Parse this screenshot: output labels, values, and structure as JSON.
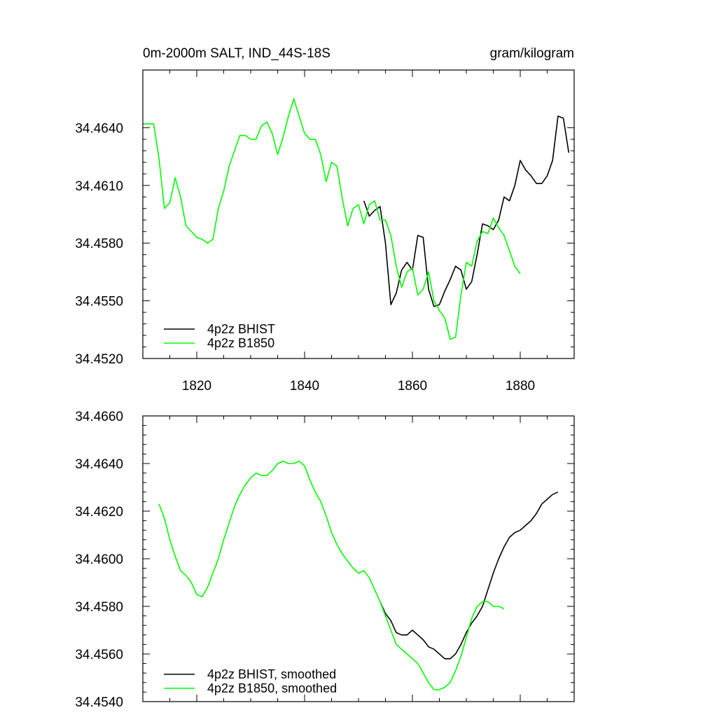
{
  "chart_data": [
    {
      "type": "line",
      "title_left": "0m-2000m SALT, IND_44S-18S",
      "title_right": "gram/kilogram",
      "xlabel": "",
      "ylabel": "",
      "xlim": [
        1810,
        1890
      ],
      "ylim": [
        34.452,
        34.467
      ],
      "x_ticks": [
        1820,
        1840,
        1860,
        1880
      ],
      "x_tick_labels": [
        "1820",
        "1840",
        "1860",
        "1880"
      ],
      "y_ticks": [
        34.452,
        34.455,
        34.458,
        34.461,
        34.464
      ],
      "y_tick_labels": [
        "34.4520",
        "34.4550",
        "34.4580",
        "34.4610",
        "34.4640"
      ],
      "legend": [
        "4p2z BHIST",
        "4p2z B1850"
      ],
      "series": [
        {
          "name": "4p2z BHIST",
          "color": "#000000",
          "x": [
            1851,
            1852,
            1853,
            1854,
            1855,
            1856,
            1857,
            1858,
            1859,
            1860,
            1861,
            1862,
            1863,
            1864,
            1865,
            1866,
            1867,
            1868,
            1869,
            1870,
            1871,
            1872,
            1873,
            1874,
            1875,
            1876,
            1877,
            1878,
            1879,
            1880,
            1881,
            1882,
            1883,
            1884,
            1885,
            1886,
            1887,
            1888,
            1889
          ],
          "y": [
            34.4602,
            34.4594,
            34.4597,
            34.4599,
            34.458,
            34.4548,
            34.4554,
            34.4566,
            34.457,
            34.4566,
            34.4584,
            34.4583,
            34.4556,
            34.4547,
            34.4548,
            34.4555,
            34.4561,
            34.4568,
            34.4566,
            34.4556,
            34.456,
            34.4574,
            34.459,
            34.4589,
            34.4587,
            34.4592,
            34.4604,
            34.4602,
            34.461,
            34.4623,
            34.4618,
            34.4615,
            34.4611,
            34.4611,
            34.4615,
            34.4623,
            34.4646,
            34.4645,
            34.4627
          ]
        },
        {
          "name": "4p2z B1850",
          "color": "#00ff00",
          "x": [
            1810,
            1811,
            1812,
            1813,
            1814,
            1815,
            1816,
            1817,
            1818,
            1819,
            1820,
            1821,
            1822,
            1823,
            1824,
            1825,
            1826,
            1827,
            1828,
            1829,
            1830,
            1831,
            1832,
            1833,
            1834,
            1835,
            1836,
            1837,
            1838,
            1839,
            1840,
            1841,
            1842,
            1843,
            1844,
            1845,
            1846,
            1847,
            1848,
            1849,
            1850,
            1851,
            1852,
            1853,
            1854,
            1855,
            1856,
            1857,
            1858,
            1859,
            1860,
            1861,
            1862,
            1863,
            1864,
            1865,
            1866,
            1867,
            1868,
            1869,
            1870,
            1871,
            1872,
            1873,
            1874,
            1875,
            1876,
            1877,
            1878,
            1879,
            1880
          ],
          "y": [
            34.4642,
            34.4642,
            34.4642,
            34.4624,
            34.4598,
            34.4601,
            34.4614,
            34.4604,
            34.4589,
            34.4586,
            34.4583,
            34.4582,
            34.458,
            34.4582,
            34.4598,
            34.4607,
            34.462,
            34.4628,
            34.4636,
            34.4636,
            34.4634,
            34.4634,
            34.4641,
            34.4643,
            34.4637,
            34.4626,
            34.4635,
            34.4646,
            34.4655,
            34.4646,
            34.4637,
            34.4634,
            34.4634,
            34.4626,
            34.4612,
            34.4622,
            34.462,
            34.4603,
            34.4589,
            34.4598,
            34.46,
            34.459,
            34.46,
            34.4602,
            34.4592,
            34.4592,
            34.4584,
            34.4568,
            34.4557,
            34.4565,
            34.4567,
            34.4553,
            34.4556,
            34.4565,
            34.455,
            34.4545,
            34.4541,
            34.453,
            34.4531,
            34.4553,
            34.457,
            34.4568,
            34.4581,
            34.4586,
            34.4585,
            34.4593,
            34.4588,
            34.4584,
            34.4576,
            34.4568,
            34.4564
          ]
        }
      ]
    },
    {
      "type": "line",
      "title_left": "",
      "title_right": "",
      "xlabel": "",
      "ylabel": "",
      "xlim": [
        1810,
        1890
      ],
      "ylim": [
        34.454,
        34.466
      ],
      "x_ticks": [
        1820,
        1840,
        1860,
        1880
      ],
      "x_tick_labels": [],
      "y_ticks": [
        34.454,
        34.456,
        34.458,
        34.46,
        34.462,
        34.464,
        34.466
      ],
      "y_tick_labels": [
        "34.4540",
        "34.4560",
        "34.4580",
        "34.4600",
        "34.4620",
        "34.4640",
        "34.4660"
      ],
      "legend": [
        "4p2z BHIST, smoothed",
        "4p2z B1850, smoothed"
      ],
      "series": [
        {
          "name": "4p2z BHIST, smoothed",
          "color": "#000000",
          "x": [
            1854,
            1855,
            1856,
            1857,
            1858,
            1859,
            1860,
            1861,
            1862,
            1863,
            1864,
            1865,
            1866,
            1867,
            1868,
            1869,
            1870,
            1871,
            1872,
            1873,
            1874,
            1875,
            1876,
            1877,
            1878,
            1879,
            1880,
            1881,
            1882,
            1883,
            1884,
            1885,
            1886,
            1887
          ],
          "y": [
            34.4582,
            34.4577,
            34.4574,
            34.4569,
            34.4568,
            34.4568,
            34.457,
            34.4568,
            34.4566,
            34.4563,
            34.4562,
            34.456,
            34.4558,
            34.4558,
            34.456,
            34.4564,
            34.4569,
            34.4573,
            34.4576,
            34.458,
            34.4587,
            34.4594,
            34.46,
            34.4605,
            34.4609,
            34.4611,
            34.4612,
            34.4614,
            34.4616,
            34.4619,
            34.4623,
            34.4625,
            34.4627,
            34.4628
          ]
        },
        {
          "name": "4p2z B1850, smoothed",
          "color": "#00ff00",
          "x": [
            1813,
            1814,
            1815,
            1816,
            1817,
            1818,
            1819,
            1820,
            1821,
            1822,
            1823,
            1824,
            1825,
            1826,
            1827,
            1828,
            1829,
            1830,
            1831,
            1832,
            1833,
            1834,
            1835,
            1836,
            1837,
            1838,
            1839,
            1840,
            1841,
            1842,
            1843,
            1844,
            1845,
            1846,
            1847,
            1848,
            1849,
            1850,
            1851,
            1852,
            1853,
            1854,
            1855,
            1856,
            1857,
            1858,
            1859,
            1860,
            1861,
            1862,
            1863,
            1864,
            1865,
            1866,
            1867,
            1868,
            1869,
            1870,
            1871,
            1872,
            1873,
            1874,
            1875,
            1876,
            1877
          ],
          "y": [
            34.4623,
            34.4617,
            34.4608,
            34.4601,
            34.4595,
            34.4593,
            34.459,
            34.4585,
            34.4584,
            34.4588,
            34.4594,
            34.46,
            34.4608,
            34.4615,
            34.4622,
            34.4627,
            34.4631,
            34.4634,
            34.4636,
            34.4635,
            34.4635,
            34.4637,
            34.464,
            34.4641,
            34.464,
            34.464,
            34.4641,
            34.4639,
            34.4633,
            34.4628,
            34.4624,
            34.4618,
            34.4611,
            34.4606,
            34.4602,
            34.4599,
            34.4596,
            34.4594,
            34.4595,
            34.4592,
            34.4587,
            34.4582,
            34.4576,
            34.457,
            34.4564,
            34.4562,
            34.456,
            34.4558,
            34.4556,
            34.4552,
            34.4548,
            34.4545,
            34.4545,
            34.4546,
            34.4548,
            34.4553,
            34.4559,
            34.4567,
            34.4575,
            34.458,
            34.4582,
            34.4582,
            34.458,
            34.458,
            34.4579
          ]
        }
      ]
    }
  ]
}
